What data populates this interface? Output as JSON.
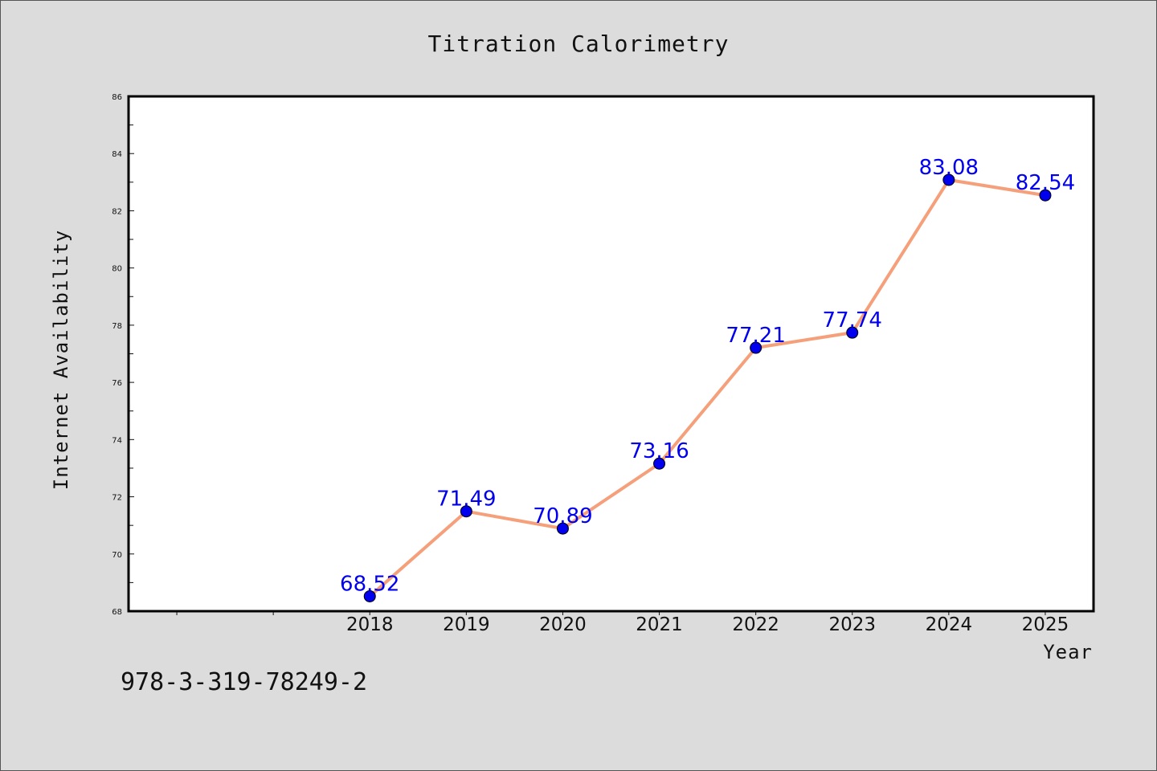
{
  "chart_data": {
    "type": "line",
    "title": "Titration Calorimetry",
    "xlabel": "Year",
    "ylabel": "Internet Availability",
    "x": [
      2018,
      2019,
      2020,
      2021,
      2022,
      2023,
      2024,
      2025
    ],
    "x_tick_labels": [
      "2018",
      "2019",
      "2020",
      "2021",
      "2022",
      "2023",
      "2024",
      "2025"
    ],
    "xlim": [
      2015.5,
      2025.5
    ],
    "ylim": [
      68,
      86
    ],
    "y_ticks": [
      68,
      70,
      72,
      74,
      76,
      78,
      80,
      82,
      84,
      86
    ],
    "series": [
      {
        "values": [
          68.52,
          71.49,
          70.89,
          73.16,
          77.21,
          77.74,
          83.08,
          82.54
        ],
        "data_labels": [
          "68.52",
          "71.49",
          "70.89",
          "73.16",
          "77.21",
          "77.74",
          "83.08",
          "82.54"
        ],
        "line_color": "#f5a07a",
        "marker_color": "#0000ee"
      }
    ],
    "grid": false,
    "legend": "none"
  },
  "footer": {
    "isbn": "978-3-319-78249-2"
  }
}
